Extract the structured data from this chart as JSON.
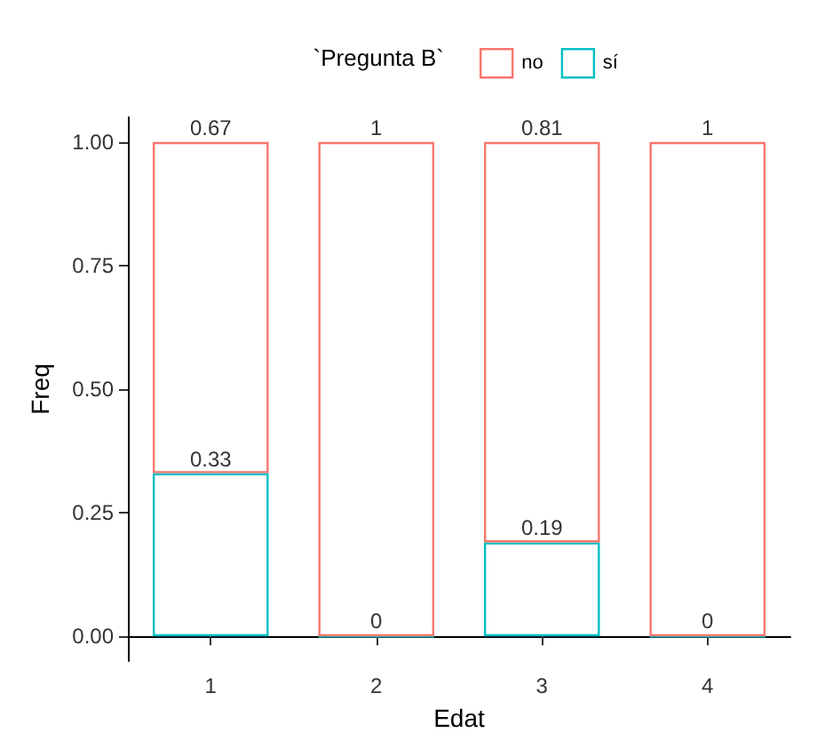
{
  "chart_data": {
    "type": "bar",
    "xlabel": "Edat",
    "ylabel": "Freq",
    "legend_title": "`Pregunta B`",
    "categories": [
      "1",
      "2",
      "3",
      "4"
    ],
    "series": [
      {
        "name": "sí",
        "color": "#00bfc4",
        "values": [
          0.33,
          0,
          0.19,
          0
        ]
      },
      {
        "name": "no",
        "color": "#f8766d",
        "values": [
          0.67,
          1,
          0.81,
          1
        ]
      }
    ],
    "stacked": true,
    "data_labels": true,
    "legend": "top",
    "grid": false,
    "ylim": [
      -0.05,
      1.05
    ],
    "yticks": [
      {
        "value": 0,
        "label": "0.00"
      },
      {
        "value": 0.25,
        "label": "0.25"
      },
      {
        "value": 0.5,
        "label": "0.50"
      },
      {
        "value": 0.75,
        "label": "0.75"
      },
      {
        "value": 1,
        "label": "1.00"
      }
    ]
  }
}
